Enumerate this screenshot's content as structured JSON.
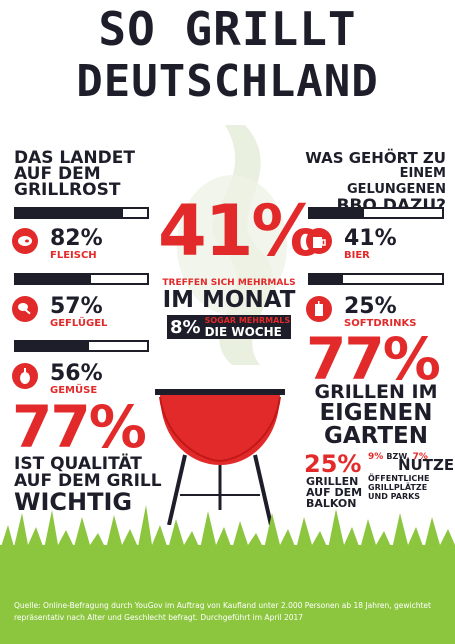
{
  "title": {
    "line1": "SO GRILLT",
    "line2": "DEUTSCHLAND"
  },
  "left": {
    "heading": [
      "DAS LANDET",
      "AUF DEM",
      "GRILLROST"
    ],
    "items": [
      {
        "pct": "82%",
        "label": "FLEISCH",
        "icon": "steak-icon",
        "value": 82
      },
      {
        "pct": "57%",
        "label": "GEFLÜGEL",
        "icon": "chicken-leg-icon",
        "value": 57
      },
      {
        "pct": "56%",
        "label": "GEMÜSE",
        "icon": "vegetable-icon",
        "value": 56
      }
    ],
    "quality_pct": "77%",
    "quality_text": [
      "IST QUALITÄT",
      "AUF DEM GRILL",
      "WICHTIG"
    ]
  },
  "center": {
    "pct": "41%",
    "text_small": "TREFFEN SICH MEHRMALS",
    "text_big": "IM MONAT",
    "box_pct": "8%",
    "box_small": "SOGAR MEHRMALS",
    "box_big": "DIE WOCHE"
  },
  "right": {
    "heading": [
      "WAS GEHÖRT ZU",
      "EINEM GELUNGENEN",
      "BBQ DAZU?"
    ],
    "items": [
      {
        "pct": "41%",
        "label": "BIER",
        "icon": "beer-mug-icon",
        "value": 41
      },
      {
        "pct": "25%",
        "label": "SOFTDRINKS",
        "icon": "soft-drink-icon",
        "value": 25
      }
    ],
    "garden_pct": "77%",
    "garden_text": [
      "GRILLEN IM",
      "EIGENEN",
      "GARTEN"
    ],
    "balcony_pct": "25%",
    "balcony_text": [
      "GRILLEN",
      "AUF DEM",
      "BALKON"
    ],
    "public_pct1": "9%",
    "public_sep": "BZW.",
    "public_pct2": "7%",
    "public_big": "NUTZEN",
    "public_small": [
      "ÖFFENTLICHE",
      "GRILLPLÄTZE",
      "UND PARKS"
    ]
  },
  "source": "Quelle: Online-Befragung durch YouGov im Auftrag von Kaufland unter 2.000 Personen ab 18 Jahren, gewichtet repräsentativ nach Alter und Geschlecht befragt. Durchgeführt im April 2017",
  "colors": {
    "red": "#e22a2a",
    "dark": "#1e1e2a",
    "grass": "#8cc63f",
    "smoke": "#e8eedd"
  }
}
